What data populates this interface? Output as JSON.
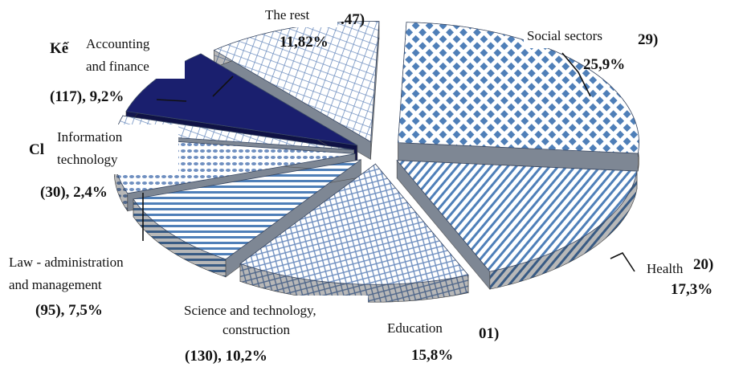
{
  "chart_data": {
    "type": "pie",
    "style": "3d-exploded",
    "slices": [
      {
        "label": "Social sectors",
        "percent": 25.9,
        "count_text": "29)",
        "value_text": "25,9%",
        "pattern": "diamond",
        "color": "#5b87c0"
      },
      {
        "label": "Health",
        "percent": 17.3,
        "count_text": "20)",
        "value_text": "17,3%",
        "pattern": "stripes",
        "color": "#4f7fb8"
      },
      {
        "label": "Education",
        "percent": 15.8,
        "count_text": "01)",
        "value_text": "15,8%",
        "pattern": "crosshatch",
        "color": "#6f8fc0"
      },
      {
        "label": "Science and technology, construction",
        "percent": 10.2,
        "value_text": "(130), 10,2%",
        "pattern": "stripes-horizontal",
        "color": "#4f7fb8"
      },
      {
        "label": "Law - administration and management",
        "percent": 7.5,
        "value_text": "(95), 7,5%",
        "pattern": "dots",
        "color": "#6f8fc0"
      },
      {
        "label": "Information technology",
        "percent": 2.4,
        "value_text": "(30), 2,4%",
        "pattern": "grid",
        "color": "#5b87c0",
        "obscured_text": "Cl"
      },
      {
        "label": "Accounting and finance",
        "percent": 9.2,
        "value_text": "(117), 9,2%",
        "pattern": "solid",
        "color": "#1a1f6e",
        "obscured_text": "Kế"
      },
      {
        "label": "The rest",
        "percent": 11.82,
        "count_text": ".47)",
        "value_text": "11,82%",
        "pattern": "grid",
        "color": "#6f8fc0"
      }
    ]
  }
}
